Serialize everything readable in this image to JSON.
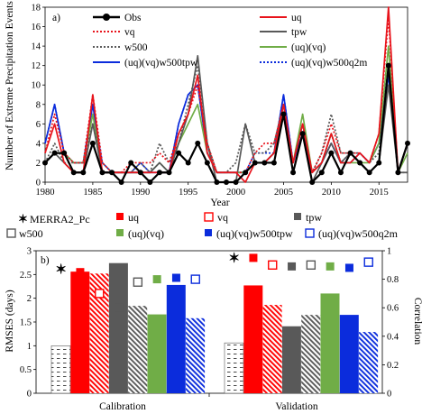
{
  "chart_data": [
    {
      "type": "line",
      "panel_label": "a)",
      "xlabel": "Year",
      "ylabel": "Number of Extreme Precipitation Events",
      "xlim": [
        1980,
        2018
      ],
      "ylim": [
        0,
        18
      ],
      "xticks": [
        1980,
        1985,
        1990,
        1995,
        2000,
        2005,
        2010,
        2015
      ],
      "yticks": [
        0,
        2,
        4,
        6,
        8,
        10,
        12,
        14,
        16,
        18
      ],
      "grid": false,
      "legend_position": "top",
      "x": [
        1980,
        1981,
        1982,
        1983,
        1984,
        1985,
        1986,
        1987,
        1988,
        1989,
        1990,
        1991,
        1992,
        1993,
        1994,
        1995,
        1996,
        1997,
        1998,
        1999,
        2000,
        2001,
        2002,
        2003,
        2004,
        2005,
        2006,
        2007,
        2008,
        2009,
        2010,
        2011,
        2012,
        2013,
        2014,
        2015,
        2016,
        2017,
        2018
      ],
      "series": [
        {
          "name": "Obs",
          "color": "#000000",
          "style": "solid-markers",
          "values": [
            2,
            3,
            3,
            1,
            1,
            4,
            1,
            1,
            0,
            2,
            1,
            0,
            1,
            1,
            3,
            2,
            4,
            2,
            0,
            0,
            0,
            1,
            2,
            2,
            2,
            7,
            1,
            5,
            0,
            1,
            3,
            1,
            3,
            2,
            1,
            2,
            12,
            1,
            4
          ]
        },
        {
          "name": "uq",
          "color": "#e8141c",
          "style": "solid",
          "values": [
            3,
            6,
            2,
            1,
            1,
            9,
            1,
            1,
            1,
            1,
            1,
            1,
            1,
            1,
            5,
            7,
            11,
            3,
            1,
            1,
            1,
            0,
            2,
            2,
            3,
            8,
            2,
            6,
            1,
            2,
            5,
            2,
            2,
            3,
            2,
            5,
            18,
            1,
            4
          ]
        },
        {
          "name": "vq",
          "color": "#e8141c",
          "style": "dotted",
          "values": [
            3,
            7,
            3,
            2,
            2,
            9,
            2,
            1,
            1,
            2,
            2,
            2,
            3,
            2,
            5,
            7,
            10,
            4,
            1,
            1,
            1,
            1,
            3,
            4,
            4,
            8,
            2,
            6,
            1,
            3,
            6,
            3,
            3,
            3,
            2,
            5,
            17,
            1,
            4
          ]
        },
        {
          "name": "tpw",
          "color": "#595959",
          "style": "solid",
          "values": [
            2,
            3,
            2,
            1,
            1,
            6,
            1,
            1,
            1,
            1,
            1,
            1,
            2,
            1,
            4,
            7,
            13,
            4,
            0,
            0,
            0,
            6,
            2,
            2,
            3,
            7,
            1,
            5,
            0,
            2,
            4,
            2,
            3,
            2,
            1,
            2,
            10,
            1,
            1
          ]
        },
        {
          "name": "w500",
          "color": "#595959",
          "style": "dotted",
          "values": [
            2,
            4,
            2,
            2,
            2,
            6,
            2,
            1,
            1,
            1,
            2,
            1,
            4,
            2,
            4,
            8,
            12,
            4,
            1,
            1,
            2,
            6,
            3,
            3,
            4,
            8,
            2,
            5,
            1,
            3,
            7,
            3,
            3,
            3,
            2,
            3,
            12,
            1,
            1
          ]
        },
        {
          "name": "(uq)(vq)",
          "color": "#70ad47",
          "style": "solid",
          "values": [
            2,
            3,
            3,
            2,
            2,
            7,
            1,
            1,
            1,
            1,
            1,
            1,
            2,
            1,
            4,
            6,
            8,
            3,
            1,
            1,
            1,
            1,
            2,
            2,
            3,
            7,
            2,
            7,
            1,
            2,
            5,
            2,
            2,
            2,
            2,
            4,
            14,
            1,
            3
          ]
        },
        {
          "name": "(uq)(vq)w500tpw",
          "color": "#0b2cdc",
          "style": "solid",
          "values": [
            4,
            8,
            3,
            2,
            2,
            8,
            1,
            1,
            1,
            1,
            1,
            1,
            1,
            1,
            6,
            9,
            10,
            3,
            1,
            1,
            1,
            1,
            2,
            2,
            3,
            9,
            2,
            5,
            1,
            2,
            4,
            2,
            2,
            3,
            2,
            4,
            11,
            1,
            4
          ]
        },
        {
          "name": "(uq)(vq)w500q2m",
          "color": "#0b2cdc",
          "style": "dotted",
          "values": [
            4,
            8,
            3,
            2,
            2,
            8,
            2,
            1,
            1,
            1,
            2,
            1,
            2,
            1,
            6,
            9,
            10,
            3,
            1,
            1,
            1,
            1,
            3,
            3,
            3,
            9,
            2,
            6,
            1,
            2,
            5,
            2,
            3,
            3,
            2,
            4,
            12,
            1,
            4
          ]
        }
      ]
    },
    {
      "type": "bar",
      "panel_label": "b)",
      "ylabel": "RMSES (days)",
      "y2label": "Correlation",
      "ylim": [
        0,
        3
      ],
      "y2lim": [
        0,
        1
      ],
      "yticks": [
        0,
        0.5,
        1,
        1.5,
        2,
        2.5,
        3
      ],
      "y2ticks": [
        0,
        0.2,
        0.4,
        0.6,
        0.8,
        1
      ],
      "categories": [
        "Calibration",
        "Validation"
      ],
      "legend_position": "top",
      "series": [
        {
          "name": "MERRA2_Pc",
          "color": "#ffffff",
          "pattern": "dashes",
          "rmse": [
            1.0,
            1.06
          ],
          "corr": [
            0.87,
            0.95
          ],
          "corr_marker": "star",
          "corr_color": "#595959"
        },
        {
          "name": "uq",
          "color": "#ff0000",
          "pattern": "solid",
          "rmse": [
            2.56,
            2.27
          ],
          "corr": [
            0.85,
            0.95
          ],
          "corr_marker": "square-filled",
          "corr_color": "#ff0000"
        },
        {
          "name": "vq",
          "color": "#ff0000",
          "pattern": "hatch",
          "rmse": [
            2.52,
            1.86
          ],
          "corr": [
            0.7,
            0.9
          ],
          "corr_marker": "square-open",
          "corr_color": "#ff0000"
        },
        {
          "name": "tpw",
          "color": "#595959",
          "pattern": "solid",
          "rmse": [
            2.74,
            1.41
          ],
          "corr": [
            0.6,
            0.89
          ],
          "corr_marker": "square-filled",
          "corr_color": "#595959"
        },
        {
          "name": "w500",
          "color": "#595959",
          "pattern": "hatch",
          "rmse": [
            1.84,
            1.65
          ],
          "corr": [
            0.78,
            0.9
          ],
          "corr_marker": "square-open",
          "corr_color": "#595959"
        },
        {
          "name": "(uq)(vq)",
          "color": "#70ad47",
          "pattern": "solid",
          "rmse": [
            1.66,
            2.1
          ],
          "corr": [
            0.8,
            0.89
          ],
          "corr_marker": "square-filled",
          "corr_color": "#70ad47"
        },
        {
          "name": "(uq)(vq)w500tpw",
          "color": "#0b2cdc",
          "pattern": "solid",
          "rmse": [
            2.28,
            1.65
          ],
          "corr": [
            0.81,
            0.88
          ],
          "corr_marker": "square-filled",
          "corr_color": "#0b2cdc"
        },
        {
          "name": "(uq)(vq)w500q2m",
          "color": "#0b2cdc",
          "pattern": "hatch",
          "rmse": [
            1.58,
            1.29
          ],
          "corr": [
            0.8,
            0.92
          ],
          "corr_marker": "square-open",
          "corr_color": "#0b2cdc"
        }
      ]
    }
  ]
}
